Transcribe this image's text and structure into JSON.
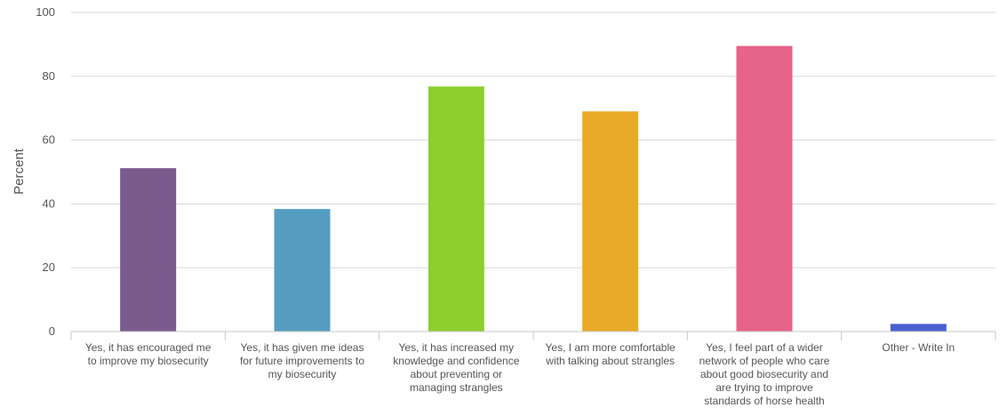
{
  "chart_data": {
    "type": "bar",
    "title": "",
    "xlabel": "",
    "ylabel": "Percent",
    "ylim": [
      0,
      100
    ],
    "yticks": [
      0,
      20,
      40,
      60,
      80,
      100
    ],
    "grid": true,
    "categories": [
      [
        "Yes, it has encouraged me",
        "to improve my biosecurity"
      ],
      [
        "Yes, it has given me ideas",
        "for future improvements to",
        "my biosecurity"
      ],
      [
        "Yes, it has increased my",
        "knowledge and confidence",
        "about preventing or",
        "managing strangles"
      ],
      [
        "Yes, I am more comfortable",
        "with talking about strangles"
      ],
      [
        "Yes, I feel part of a wider",
        "network of people who care",
        "about good biosecurity and",
        "are trying to improve",
        "standards of horse health"
      ],
      [
        "Other - Write In"
      ]
    ],
    "values": [
      51.2,
      38.4,
      76.8,
      69.0,
      89.5,
      2.4
    ],
    "colors": [
      "#7b5a8e",
      "#559ec1",
      "#8ecf2e",
      "#e9aa27",
      "#e66489",
      "#4b5fcf"
    ]
  }
}
